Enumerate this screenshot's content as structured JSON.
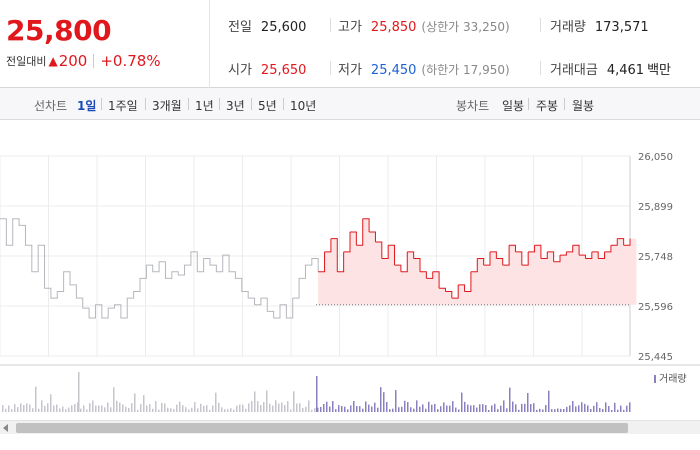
{
  "quote": {
    "current_price": "25,800",
    "change_label": "전일대비",
    "change_icon": "triangle-up-icon",
    "change_value": "200",
    "change_rate": "+0.78%",
    "cells": {
      "prev_close": {
        "label": "전일",
        "value": "25,600"
      },
      "high": {
        "label": "고가",
        "value": "25,850",
        "sub": "(상한가 33,250)"
      },
      "volume": {
        "label": "거래량",
        "value": "173,571"
      },
      "open": {
        "label": "시가",
        "value": "25,650"
      },
      "low": {
        "label": "저가",
        "value": "25,450",
        "sub": "(하한가 17,950)"
      },
      "amount": {
        "label": "거래대금",
        "value": "4,461",
        "unit": "백만"
      }
    },
    "colors": {
      "up": "#e0181d",
      "down": "#1e62d0"
    }
  },
  "periods": {
    "line_label": "선차트",
    "line_options": [
      "1일",
      "1주일",
      "3개월",
      "1년",
      "3년",
      "5년",
      "10년"
    ],
    "active": "1일",
    "candle_label": "봉차트",
    "candle_options": [
      "일봉",
      "주봉",
      "월봉"
    ]
  },
  "chart_data": {
    "type": "line",
    "y_ticks": [
      "26,050",
      "25,899",
      "25,748",
      "25,596",
      "25,445"
    ],
    "ylim": [
      25445,
      26050
    ],
    "prev_close": 25600,
    "volume_legend": "거래량",
    "series": [
      {
        "values": [
          25860,
          25780,
          25860,
          25840,
          25780,
          25700,
          25780,
          25650,
          25620,
          25640,
          25700,
          25660,
          25620,
          25590,
          25560,
          25600,
          25560,
          25590,
          25600,
          25560,
          25620,
          25640,
          25680,
          25720,
          25700,
          25730,
          25680,
          25700,
          25690,
          25720,
          25760,
          25700,
          25740,
          25720,
          25700,
          25750,
          25700,
          25680,
          25640,
          25620,
          25600,
          25620,
          25580,
          25560,
          25600,
          25560,
          25620,
          25680,
          25720,
          25740,
          25700,
          25760,
          25800,
          25700,
          25760,
          25820,
          25780,
          25860,
          25820,
          25790,
          25740,
          25780,
          25720,
          25700,
          25760,
          25740,
          25700,
          25680,
          25700,
          25650,
          25640,
          25620,
          25660,
          25640,
          25700,
          25740,
          25720,
          25760,
          25740,
          25720,
          25780,
          25760,
          25720,
          25760,
          25780,
          25740,
          25760,
          25730,
          25750,
          25760,
          25780,
          25750,
          25740,
          25760,
          25740,
          25760,
          25780,
          25800,
          25780,
          25800
        ]
      }
    ]
  }
}
